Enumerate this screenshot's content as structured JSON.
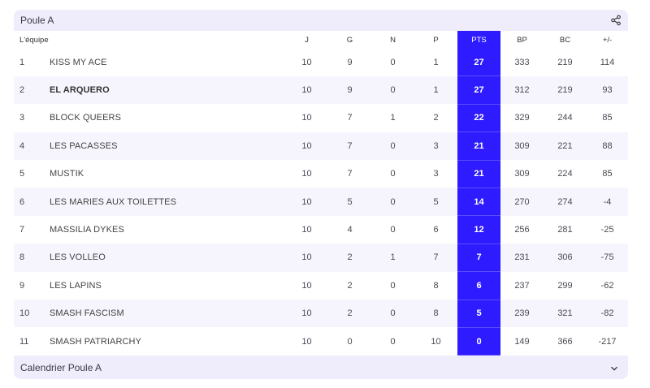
{
  "header": {
    "title": "Poule A",
    "share_icon": "share-icon"
  },
  "columns": {
    "team": "L'équipe",
    "j": "J",
    "g": "G",
    "n": "N",
    "p": "P",
    "pts": "PTS",
    "bp": "BP",
    "bc": "BC",
    "diff": "+/-"
  },
  "rows": [
    {
      "rank": "1",
      "team": "KISS MY ACE",
      "j": "10",
      "g": "9",
      "n": "0",
      "p": "1",
      "pts": "27",
      "bp": "333",
      "bc": "219",
      "diff": "114"
    },
    {
      "rank": "2",
      "team": "EL ARQUERO",
      "j": "10",
      "g": "9",
      "n": "0",
      "p": "1",
      "pts": "27",
      "bp": "312",
      "bc": "219",
      "diff": "93"
    },
    {
      "rank": "3",
      "team": "BLOCK QUEERS",
      "j": "10",
      "g": "7",
      "n": "1",
      "p": "2",
      "pts": "22",
      "bp": "329",
      "bc": "244",
      "diff": "85"
    },
    {
      "rank": "4",
      "team": "LES PACASSES",
      "j": "10",
      "g": "7",
      "n": "0",
      "p": "3",
      "pts": "21",
      "bp": "309",
      "bc": "221",
      "diff": "88"
    },
    {
      "rank": "5",
      "team": "MUSTIK",
      "j": "10",
      "g": "7",
      "n": "0",
      "p": "3",
      "pts": "21",
      "bp": "309",
      "bc": "224",
      "diff": "85"
    },
    {
      "rank": "6",
      "team": "LES MARIES AUX TOILETTES",
      "j": "10",
      "g": "5",
      "n": "0",
      "p": "5",
      "pts": "14",
      "bp": "270",
      "bc": "274",
      "diff": "-4"
    },
    {
      "rank": "7",
      "team": "MASSILIA DYKES",
      "j": "10",
      "g": "4",
      "n": "0",
      "p": "6",
      "pts": "12",
      "bp": "256",
      "bc": "281",
      "diff": "-25"
    },
    {
      "rank": "8",
      "team": "LES VOLLEO",
      "j": "10",
      "g": "2",
      "n": "1",
      "p": "7",
      "pts": "7",
      "bp": "231",
      "bc": "306",
      "diff": "-75"
    },
    {
      "rank": "9",
      "team": "LES LAPINS",
      "j": "10",
      "g": "2",
      "n": "0",
      "p": "8",
      "pts": "6",
      "bp": "237",
      "bc": "299",
      "diff": "-62"
    },
    {
      "rank": "10",
      "team": "SMASH FASCISM",
      "j": "10",
      "g": "2",
      "n": "0",
      "p": "8",
      "pts": "5",
      "bp": "239",
      "bc": "321",
      "diff": "-82"
    },
    {
      "rank": "11",
      "team": "SMASH PATRIARCHY",
      "j": "10",
      "g": "0",
      "n": "0",
      "p": "10",
      "pts": "0",
      "bp": "149",
      "bc": "366",
      "diff": "-217"
    }
  ],
  "highlighted_team_rank": "2",
  "colors": {
    "accent": "#2f1bff",
    "card_bg": "#efedfb",
    "row_alt": "#f6f5fd"
  },
  "footer": {
    "label": "Calendrier Poule A",
    "chevron_icon": "chevron-down-icon"
  }
}
